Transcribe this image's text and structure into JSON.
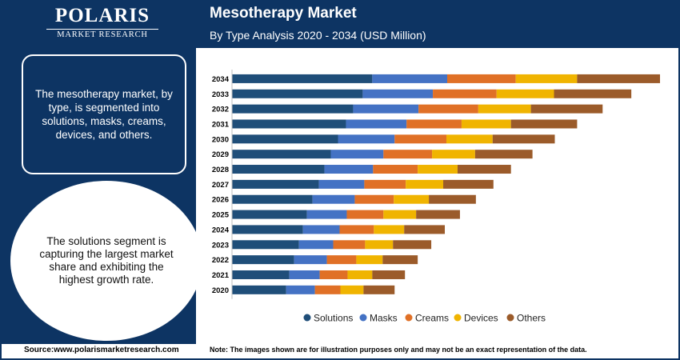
{
  "header": {
    "logo_main": "POLARIS",
    "logo_sub": "MARKET RESEARCH",
    "title": "Mesotherapy Market",
    "subtitle": "By Type Analysis 2020 - 2034 (USD Million)"
  },
  "sidebar": {
    "info_text": "The mesotherapy market, by type, is segmented into solutions, masks, creams, devices, and others.",
    "highlight_text": "The solutions segment is capturing the largest market share and exhibiting the highest growth rate."
  },
  "footer": {
    "source": "Source:www.polarismarketresearch.com",
    "note": "Note: The images shown are for illustration purposes only and may not be an exact representation of the data."
  },
  "chart_data": {
    "type": "bar",
    "orientation": "horizontal",
    "stacked": true,
    "title": "",
    "xlabel": "",
    "ylabel": "",
    "categories": [
      "2034",
      "2033",
      "2032",
      "2031",
      "2030",
      "2029",
      "2028",
      "2027",
      "2026",
      "2025",
      "2024",
      "2023",
      "2022",
      "2021",
      "2020"
    ],
    "series": [
      {
        "name": "Solutions",
        "color": "#1f4e79",
        "values": [
          176,
          164,
          152,
          143,
          133,
          124,
          116,
          109,
          101,
          94,
          89,
          84,
          78,
          72,
          68
        ]
      },
      {
        "name": "Masks",
        "color": "#4472c4",
        "values": [
          94,
          88,
          82,
          76,
          71,
          66,
          61,
          57,
          53,
          50,
          46,
          43,
          41,
          38,
          36
        ]
      },
      {
        "name": "Creams",
        "color": "#e07026",
        "values": [
          86,
          80,
          75,
          69,
          65,
          61,
          56,
          52,
          49,
          46,
          43,
          40,
          37,
          35,
          32
        ]
      },
      {
        "name": "Devices",
        "color": "#f0b400",
        "values": [
          77,
          72,
          66,
          62,
          58,
          54,
          50,
          47,
          44,
          41,
          38,
          35,
          33,
          31,
          29
        ]
      },
      {
        "name": "Others",
        "color": "#9b5b2a",
        "values": [
          104,
          97,
          90,
          83,
          78,
          72,
          67,
          63,
          59,
          55,
          51,
          48,
          44,
          41,
          39
        ]
      }
    ],
    "xlim": [
      0,
      540
    ],
    "grid": false,
    "legend_position": "bottom"
  }
}
